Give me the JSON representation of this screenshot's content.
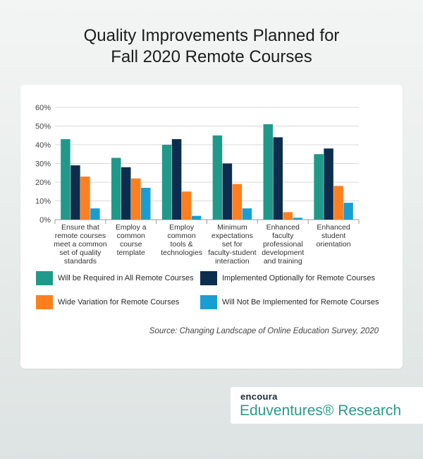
{
  "title_line1": "Quality Improvements Planned for",
  "title_line2": "Fall 2020 Remote Courses",
  "chart_data": {
    "type": "bar",
    "title": "Quality Improvements Planned for Fall 2020 Remote Courses",
    "categories": [
      "Ensure that remote courses meet a common set of quality standards",
      "Employ a common course template",
      "Employ common tools & technologies",
      "Minimum expectations set for faculty-student interaction",
      "Enhanced faculty professional development and training",
      "Enhanced student orientation"
    ],
    "category_lines": [
      [
        "Ensure that",
        "remote courses",
        "meet a common",
        "set of quality",
        "standards"
      ],
      [
        "Employ a",
        "common",
        "course",
        "template"
      ],
      [
        "Employ",
        "common",
        "tools &",
        "technologies"
      ],
      [
        "Minimum",
        "expectations",
        "set for",
        "faculty-student",
        "interaction"
      ],
      [
        "Enhanced",
        "faculty",
        "professional",
        "development",
        "and training"
      ],
      [
        "Enhanced",
        "student",
        "orientation"
      ]
    ],
    "series": [
      {
        "name": "Will be Required in All Remote Courses",
        "color": "#20998a",
        "values": [
          43,
          33,
          40,
          45,
          51,
          35
        ]
      },
      {
        "name": "Implemented Optionally for Remote Courses",
        "color": "#0d2d4f",
        "values": [
          29,
          28,
          43,
          30,
          44,
          38
        ]
      },
      {
        "name": "Wide Variation for Remote Courses",
        "color": "#ff7f1f",
        "values": [
          23,
          22,
          15,
          19,
          4,
          18
        ]
      },
      {
        "name": "Will Not Be Implemented for Remote Courses",
        "color": "#1a9ed2",
        "values": [
          6,
          17,
          2,
          6,
          1,
          9
        ]
      }
    ],
    "ylim": [
      0,
      60
    ],
    "yticks": [
      0,
      10,
      20,
      30,
      40,
      50,
      60
    ],
    "ytick_labels": [
      "0%",
      "10%",
      "20%",
      "30%",
      "40%",
      "50%",
      "60%"
    ],
    "grid": true,
    "legend_position": "bottom"
  },
  "source": "Source: Changing Landscape of Online Education Survey, 2020",
  "brand": {
    "top": "encoura",
    "bottom": "Eduventures® Research"
  }
}
